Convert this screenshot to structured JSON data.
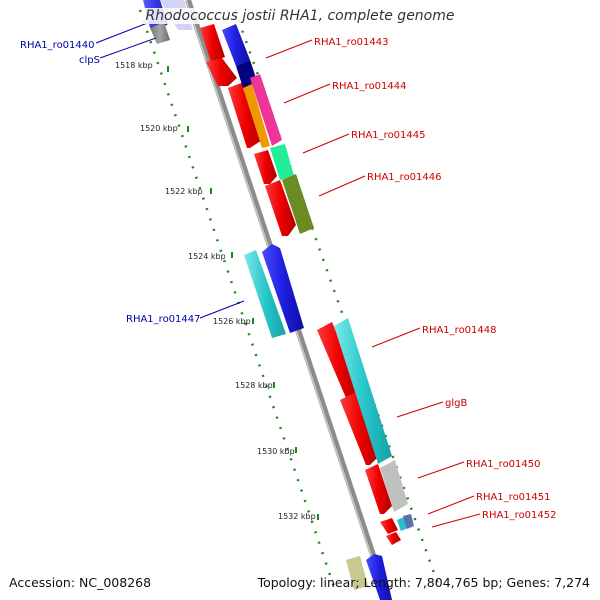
{
  "title": "Rhodococcus jostii RHA1, complete genome",
  "footer": {
    "accession": "Accession: NC_008268",
    "summary": "Topology: linear; Length: 7,804,765 bp; Genes: 7,274"
  },
  "ticks": [
    "1518 kbp",
    "1520 kbp",
    "1522 kbp",
    "1524 kbp",
    "1526 kbp",
    "1528 kbp",
    "1530 kbp",
    "1532 kbp"
  ],
  "labels_forward": [
    "RHA1_ro01443",
    "RHA1_ro01444",
    "RHA1_ro01445",
    "RHA1_ro01446",
    "RHA1_ro01448",
    "glgB",
    "RHA1_ro01450",
    "RHA1_ro01451",
    "RHA1_ro01452"
  ],
  "labels_reverse": [
    "RHA1_ro01440",
    "clpS",
    "RHA1_ro01447"
  ],
  "colors": {
    "forward_label": "#cc0000",
    "reverse_label": "#0000aa",
    "backbone": "#909090",
    "tick_dots": "#1a8a1a",
    "cds_forward": "#ee0000",
    "cds_reverse": "#2222dd"
  }
}
